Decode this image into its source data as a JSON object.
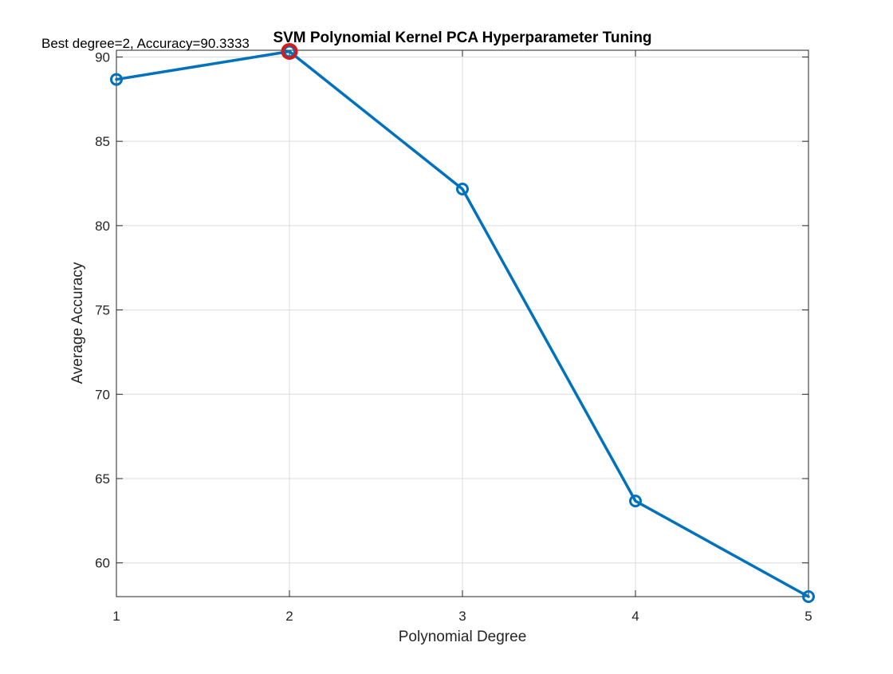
{
  "chart_data": {
    "type": "line",
    "title": "SVM Polynomial Kernel PCA Hyperparameter Tuning",
    "xlabel": "Polynomial Degree",
    "ylabel": "Average Accuracy",
    "xlim": [
      1,
      5
    ],
    "ylim": [
      58,
      90.4
    ],
    "xticks": [
      1,
      2,
      3,
      4,
      5
    ],
    "yticks": [
      60,
      65,
      70,
      75,
      80,
      85,
      90
    ],
    "grid": true,
    "x": [
      1,
      2,
      3,
      4,
      5
    ],
    "series": [
      {
        "values": [
          88.67,
          90.33,
          82.17,
          63.67,
          58.0
        ],
        "color": "#0072BD",
        "marker": "circle"
      }
    ],
    "highlight": {
      "x": 2,
      "y": 90.33,
      "color": "#D7191C"
    },
    "annotation": {
      "text": "Best degree=2, Accuracy=90.3333",
      "x": 2,
      "y": 90.33
    }
  }
}
